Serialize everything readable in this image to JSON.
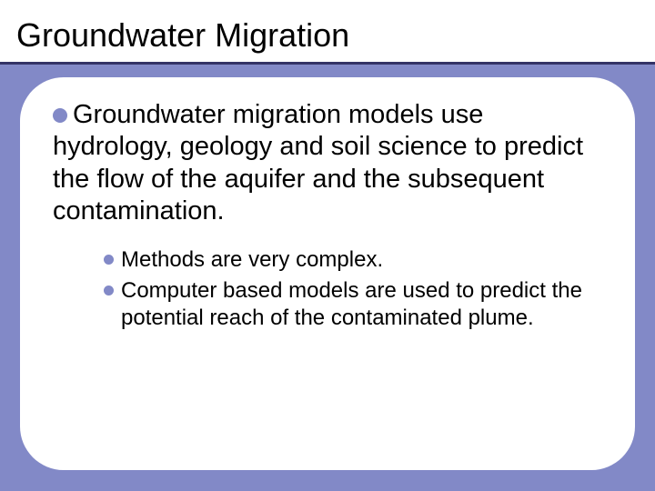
{
  "colors": {
    "background": "#8289c7",
    "card_bg": "#ffffff",
    "title_underline": "#333366",
    "bullet_main": "#8289c7",
    "bullet_sub": "#8289c7",
    "text": "#000000"
  },
  "typography": {
    "title_fontsize": 36,
    "main_fontsize": 29,
    "sub_fontsize": 24,
    "font_family": "Arial"
  },
  "layout": {
    "slide_width": 720,
    "slide_height": 540,
    "title_band_height": 68,
    "card_border_radius": 48
  },
  "title": "Groundwater Migration",
  "main_bullet": "Groundwater migration models use hydrology, geology and soil science to predict the flow of the aquifer and the subsequent contamination.",
  "sub_bullets": [
    "Methods are very complex.",
    "Computer based models are used to predict the potential reach of the contaminated plume."
  ]
}
